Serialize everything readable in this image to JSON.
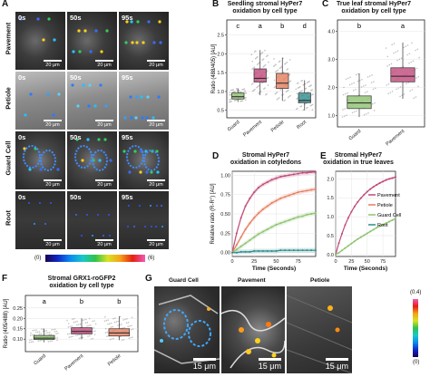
{
  "panels": {
    "A": "A",
    "B": "B",
    "C": "C",
    "D": "D",
    "E": "E",
    "F": "F",
    "G": "G"
  },
  "panel_a": {
    "rows": [
      "Pavement",
      "Petiole",
      "Guard Cell",
      "Root"
    ],
    "times": [
      "0s",
      "50s",
      "95s"
    ],
    "scale_bar": "20 μm",
    "colorbar_min": "(0)",
    "colorbar_max": "(6)"
  },
  "panel_g": {
    "titles": [
      "Guard Cell",
      "Pavement",
      "Petiole"
    ],
    "scale_bar": "15 μm",
    "colorbar_max": "(0.4)",
    "colorbar_min": "(0)"
  },
  "chart_data": [
    {
      "id": "B",
      "type": "box",
      "title": "Seedling stromal HyPer7\noxidation by cell type",
      "ylabel": "Ratio (488/405) [AU]",
      "categories": [
        "Guard",
        "Pavement",
        "Petiole",
        "Root"
      ],
      "letters": [
        "c",
        "a",
        "b",
        "d"
      ],
      "colors": [
        "#8dc26f",
        "#c0497a",
        "#e47e5e",
        "#2f8a8c"
      ],
      "ylim": [
        0.3,
        2.9
      ],
      "yticks": [
        "0.5",
        "1.0",
        "1.5",
        "2.0",
        "2.5"
      ],
      "ytick_values": [
        0.5,
        1.0,
        1.5,
        2.0,
        2.5
      ],
      "boxes": [
        {
          "q1": 0.8,
          "median": 0.86,
          "q3": 0.96,
          "lo": 0.72,
          "hi": 1.08
        },
        {
          "q1": 1.25,
          "median": 1.35,
          "q3": 1.6,
          "lo": 0.9,
          "hi": 2.1
        },
        {
          "q1": 1.08,
          "median": 1.22,
          "q3": 1.48,
          "lo": 0.75,
          "hi": 1.9
        },
        {
          "q1": 0.7,
          "median": 0.76,
          "q3": 0.96,
          "lo": 0.5,
          "hi": 1.3
        }
      ]
    },
    {
      "id": "C",
      "type": "box",
      "title": "True leaf stromal HyPer7\noxidation by cell type",
      "categories": [
        "Guard",
        "Pavement"
      ],
      "letters": [
        "b",
        "a"
      ],
      "colors": [
        "#8dc26f",
        "#c0497a"
      ],
      "ylim": [
        0.6,
        4.4
      ],
      "yticks": [
        "1.0",
        "2.0",
        "3.0",
        "4.0"
      ],
      "ytick_values": [
        1.0,
        2.0,
        3.0,
        4.0
      ],
      "boxes": [
        {
          "q1": 1.25,
          "median": 1.45,
          "q3": 1.7,
          "lo": 0.95,
          "hi": 2.5
        },
        {
          "q1": 2.2,
          "median": 2.4,
          "q3": 2.7,
          "lo": 1.6,
          "hi": 3.6
        }
      ]
    },
    {
      "id": "D",
      "type": "line",
      "title": "Stromal HyPer7\noxidation in cotyledons",
      "xlabel": "Time (Seconds)",
      "ylabel": "Relative ratio (R-R°) [AU]",
      "xlim": [
        0,
        95
      ],
      "ylim": [
        -0.05,
        1.05
      ],
      "xticks": [
        "0",
        "25",
        "50",
        "75"
      ],
      "xtick_values": [
        0,
        25,
        50,
        75
      ],
      "yticks": [
        "0.00",
        "0.25",
        "0.50",
        "0.75",
        "1.00"
      ],
      "ytick_values": [
        0,
        0.25,
        0.5,
        0.75,
        1.0
      ],
      "x": [
        0,
        5,
        10,
        15,
        20,
        25,
        30,
        35,
        40,
        45,
        50,
        55,
        60,
        65,
        70,
        75,
        80,
        85,
        90,
        95
      ],
      "series": [
        {
          "name": "Pavement",
          "color": "#c0497a",
          "values": [
            0.0,
            0.25,
            0.45,
            0.6,
            0.7,
            0.78,
            0.84,
            0.88,
            0.91,
            0.94,
            0.96,
            0.98,
            0.99,
            1.0,
            1.01,
            1.02,
            1.03,
            1.03,
            1.04,
            1.04
          ]
        },
        {
          "name": "Petiole",
          "color": "#e47e5e",
          "values": [
            0.0,
            0.1,
            0.2,
            0.3,
            0.38,
            0.45,
            0.51,
            0.56,
            0.6,
            0.64,
            0.67,
            0.7,
            0.72,
            0.74,
            0.76,
            0.78,
            0.79,
            0.8,
            0.81,
            0.82
          ]
        },
        {
          "name": "Guard Cell",
          "color": "#8dc26f",
          "values": [
            0.0,
            0.04,
            0.08,
            0.12,
            0.16,
            0.2,
            0.24,
            0.27,
            0.3,
            0.33,
            0.36,
            0.38,
            0.4,
            0.42,
            0.44,
            0.46,
            0.47,
            0.49,
            0.5,
            0.51
          ]
        },
        {
          "name": "Root",
          "color": "#2f8a8c",
          "values": [
            0.0,
            0.0,
            0.01,
            0.01,
            0.01,
            0.02,
            0.02,
            0.02,
            0.02,
            0.02,
            0.02,
            0.03,
            0.03,
            0.03,
            0.03,
            0.03,
            0.03,
            0.03,
            0.03,
            0.03
          ]
        }
      ]
    },
    {
      "id": "E",
      "type": "line",
      "title": "Stromal HyPer7\noxidation in true leaves",
      "xlabel": "Time (Seconds)",
      "xlim": [
        0,
        95
      ],
      "ylim": [
        -0.05,
        2.2
      ],
      "xticks": [
        "0",
        "25",
        "50",
        "75"
      ],
      "xtick_values": [
        0,
        25,
        50,
        75
      ],
      "yticks": [
        "0.0",
        "0.5",
        "1.0",
        "1.5",
        "2.0"
      ],
      "ytick_values": [
        0,
        0.5,
        1.0,
        1.5,
        2.0
      ],
      "x": [
        0,
        5,
        10,
        15,
        20,
        25,
        30,
        35,
        40,
        45,
        50,
        55,
        60,
        65,
        70,
        75,
        80,
        85,
        90,
        95
      ],
      "series": [
        {
          "name": "Pavement",
          "color": "#c0497a",
          "values": [
            0.0,
            0.3,
            0.55,
            0.78,
            0.97,
            1.13,
            1.27,
            1.39,
            1.49,
            1.58,
            1.66,
            1.73,
            1.79,
            1.84,
            1.89,
            1.93,
            1.97,
            2.0,
            2.02,
            2.05
          ]
        },
        {
          "name": "Guard Cell",
          "color": "#8dc26f",
          "values": [
            0.0,
            0.05,
            0.11,
            0.17,
            0.23,
            0.29,
            0.35,
            0.41,
            0.46,
            0.51,
            0.56,
            0.61,
            0.66,
            0.71,
            0.75,
            0.79,
            0.83,
            0.87,
            0.91,
            0.95
          ]
        }
      ],
      "legend": [
        "Pavement",
        "Petiole",
        "Guard Cell",
        "Root"
      ],
      "legend_colors": [
        "#c0497a",
        "#e47e5e",
        "#8dc26f",
        "#2f8a8c"
      ]
    },
    {
      "id": "F",
      "type": "box",
      "title": "Stromal GRX1-roGFP2\noxidation by cell type",
      "ylabel": "Ratio (405/488) [AU]",
      "categories": [
        "Guard",
        "Pavement",
        "Petiole"
      ],
      "letters": [
        "a",
        "b",
        "b"
      ],
      "colors": [
        "#8dc26f",
        "#c0497a",
        "#e47e5e"
      ],
      "ylim": [
        0.04,
        0.31
      ],
      "yticks": [
        "0.10",
        "0.15",
        "0.20",
        "0.25"
      ],
      "ytick_values": [
        0.1,
        0.15,
        0.2,
        0.25
      ],
      "boxes": [
        {
          "q1": 0.098,
          "median": 0.105,
          "q3": 0.118,
          "lo": 0.085,
          "hi": 0.15
        },
        {
          "q1": 0.125,
          "median": 0.137,
          "q3": 0.155,
          "lo": 0.1,
          "hi": 0.2
        },
        {
          "q1": 0.115,
          "median": 0.13,
          "q3": 0.15,
          "lo": 0.095,
          "hi": 0.21
        }
      ]
    }
  ]
}
